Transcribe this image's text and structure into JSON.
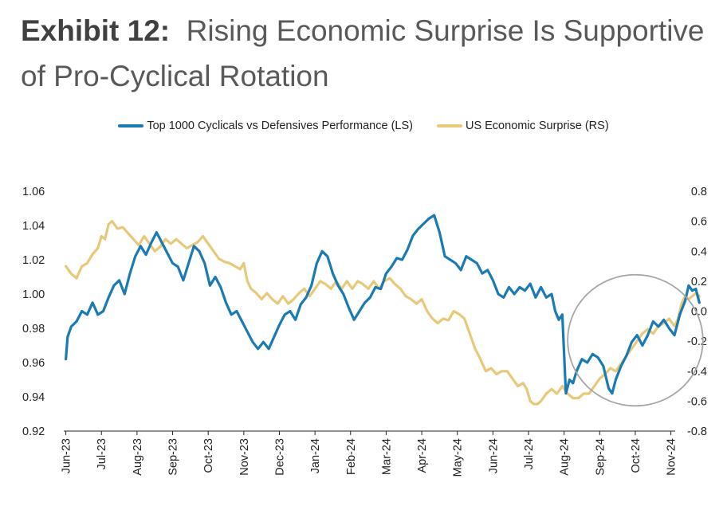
{
  "title": {
    "exhibit": "Exhibit 12:",
    "text": "Rising Economic Surprise Is Supportive of Pro-Cyclical Rotation"
  },
  "chart_data": {
    "type": "line",
    "title": "Rising Economic Surprise Is Supportive of Pro-Cyclical Rotation",
    "x_categories": [
      "Jun-23",
      "Jul-23",
      "Aug-23",
      "Sep-23",
      "Oct-23",
      "Nov-23",
      "Dec-23",
      "Jan-24",
      "Feb-24",
      "Mar-24",
      "Apr-24",
      "May-24",
      "Jun-24",
      "Jul-24",
      "Aug-24",
      "Sep-24",
      "Oct-24",
      "Nov-24"
    ],
    "y_left": {
      "min": 0.92,
      "max": 1.06,
      "ticks": [
        "0.92",
        "0.94",
        "0.96",
        "0.98",
        "1.00",
        "1.02",
        "1.04",
        "1.06"
      ]
    },
    "y_right": {
      "min": -0.8,
      "max": 0.8,
      "ticks": [
        "-0.8",
        "-0.6",
        "-0.4",
        "-0.2",
        "0.0",
        "0.2",
        "0.4",
        "0.6",
        "0.8"
      ]
    },
    "annotation": "circle highlighting Aug-24 to Nov-24",
    "annotation_range": [
      14.1,
      17.9
    ],
    "series": [
      {
        "name": "Top 1000 Cyclicals vs Defensives Performance (LS)",
        "axis": "left",
        "color": "#1a7ab3",
        "points": [
          [
            0,
            0.962
          ],
          [
            0.05,
            0.975
          ],
          [
            0.15,
            0.981
          ],
          [
            0.3,
            0.984
          ],
          [
            0.45,
            0.99
          ],
          [
            0.6,
            0.988
          ],
          [
            0.75,
            0.995
          ],
          [
            0.9,
            0.988
          ],
          [
            1.05,
            0.99
          ],
          [
            1.2,
            0.998
          ],
          [
            1.35,
            1.005
          ],
          [
            1.5,
            1.008
          ],
          [
            1.65,
            1.0
          ],
          [
            1.8,
            1.012
          ],
          [
            1.95,
            1.022
          ],
          [
            2.1,
            1.028
          ],
          [
            2.25,
            1.023
          ],
          [
            2.4,
            1.03
          ],
          [
            2.55,
            1.036
          ],
          [
            2.7,
            1.03
          ],
          [
            2.85,
            1.024
          ],
          [
            3.0,
            1.018
          ],
          [
            3.15,
            1.016
          ],
          [
            3.3,
            1.008
          ],
          [
            3.45,
            1.018
          ],
          [
            3.6,
            1.028
          ],
          [
            3.75,
            1.025
          ],
          [
            3.9,
            1.018
          ],
          [
            4.05,
            1.005
          ],
          [
            4.2,
            1.01
          ],
          [
            4.35,
            1.004
          ],
          [
            4.5,
            0.995
          ],
          [
            4.65,
            0.988
          ],
          [
            4.8,
            0.99
          ],
          [
            4.95,
            0.984
          ],
          [
            5.1,
            0.978
          ],
          [
            5.25,
            0.972
          ],
          [
            5.4,
            0.968
          ],
          [
            5.55,
            0.972
          ],
          [
            5.7,
            0.968
          ],
          [
            5.85,
            0.975
          ],
          [
            6.0,
            0.982
          ],
          [
            6.15,
            0.988
          ],
          [
            6.3,
            0.99
          ],
          [
            6.45,
            0.985
          ],
          [
            6.6,
            0.994
          ],
          [
            6.75,
            0.998
          ],
          [
            6.9,
            1.005
          ],
          [
            7.05,
            1.018
          ],
          [
            7.2,
            1.025
          ],
          [
            7.35,
            1.022
          ],
          [
            7.5,
            1.012
          ],
          [
            7.65,
            1.005
          ],
          [
            7.8,
            1.0
          ],
          [
            7.95,
            0.992
          ],
          [
            8.1,
            0.985
          ],
          [
            8.25,
            0.99
          ],
          [
            8.4,
            0.995
          ],
          [
            8.55,
            0.998
          ],
          [
            8.7,
            1.004
          ],
          [
            8.85,
            1.003
          ],
          [
            9.0,
            1.012
          ],
          [
            9.15,
            1.016
          ],
          [
            9.3,
            1.021
          ],
          [
            9.45,
            1.02
          ],
          [
            9.6,
            1.026
          ],
          [
            9.75,
            1.034
          ],
          [
            9.9,
            1.038
          ],
          [
            10.05,
            1.041
          ],
          [
            10.2,
            1.044
          ],
          [
            10.35,
            1.046
          ],
          [
            10.5,
            1.036
          ],
          [
            10.65,
            1.022
          ],
          [
            10.8,
            1.02
          ],
          [
            10.95,
            1.018
          ],
          [
            11.1,
            1.014
          ],
          [
            11.25,
            1.022
          ],
          [
            11.4,
            1.02
          ],
          [
            11.55,
            1.018
          ],
          [
            11.7,
            1.012
          ],
          [
            11.85,
            1.014
          ],
          [
            12.0,
            1.008
          ],
          [
            12.15,
            1.0
          ],
          [
            12.3,
            0.998
          ],
          [
            12.45,
            1.004
          ],
          [
            12.6,
            1.0
          ],
          [
            12.75,
            1.004
          ],
          [
            12.9,
            1.002
          ],
          [
            13.05,
            1.006
          ],
          [
            13.2,
            0.998
          ],
          [
            13.35,
            1.004
          ],
          [
            13.5,
            0.998
          ],
          [
            13.65,
            1.0
          ],
          [
            13.75,
            0.99
          ],
          [
            13.85,
            0.985
          ],
          [
            13.95,
            0.988
          ],
          [
            14.05,
            0.942
          ],
          [
            14.15,
            0.95
          ],
          [
            14.25,
            0.948
          ],
          [
            14.35,
            0.955
          ],
          [
            14.5,
            0.962
          ],
          [
            14.65,
            0.96
          ],
          [
            14.8,
            0.965
          ],
          [
            14.95,
            0.963
          ],
          [
            15.1,
            0.958
          ],
          [
            15.25,
            0.945
          ],
          [
            15.35,
            0.942
          ],
          [
            15.45,
            0.95
          ],
          [
            15.6,
            0.958
          ],
          [
            15.75,
            0.964
          ],
          [
            15.9,
            0.972
          ],
          [
            16.05,
            0.976
          ],
          [
            16.2,
            0.97
          ],
          [
            16.35,
            0.976
          ],
          [
            16.5,
            0.984
          ],
          [
            16.65,
            0.981
          ],
          [
            16.8,
            0.985
          ],
          [
            16.95,
            0.98
          ],
          [
            17.1,
            0.976
          ],
          [
            17.25,
            0.988
          ],
          [
            17.4,
            0.996
          ],
          [
            17.5,
            1.005
          ],
          [
            17.6,
            1.002
          ],
          [
            17.7,
            1.003
          ],
          [
            17.8,
            0.995
          ]
        ]
      },
      {
        "name": "US Economic Surprise (RS)",
        "axis": "right",
        "color": "#e8c97a",
        "points": [
          [
            0,
            0.3
          ],
          [
            0.15,
            0.25
          ],
          [
            0.3,
            0.22
          ],
          [
            0.45,
            0.3
          ],
          [
            0.6,
            0.32
          ],
          [
            0.75,
            0.38
          ],
          [
            0.9,
            0.42
          ],
          [
            1.0,
            0.5
          ],
          [
            1.1,
            0.48
          ],
          [
            1.2,
            0.58
          ],
          [
            1.3,
            0.6
          ],
          [
            1.45,
            0.55
          ],
          [
            1.6,
            0.56
          ],
          [
            1.75,
            0.52
          ],
          [
            1.9,
            0.48
          ],
          [
            2.05,
            0.44
          ],
          [
            2.2,
            0.5
          ],
          [
            2.35,
            0.45
          ],
          [
            2.5,
            0.4
          ],
          [
            2.65,
            0.43
          ],
          [
            2.8,
            0.48
          ],
          [
            2.95,
            0.45
          ],
          [
            3.1,
            0.48
          ],
          [
            3.25,
            0.45
          ],
          [
            3.4,
            0.42
          ],
          [
            3.55,
            0.44
          ],
          [
            3.7,
            0.46
          ],
          [
            3.85,
            0.5
          ],
          [
            4.0,
            0.45
          ],
          [
            4.15,
            0.4
          ],
          [
            4.3,
            0.35
          ],
          [
            4.45,
            0.33
          ],
          [
            4.6,
            0.32
          ],
          [
            4.75,
            0.3
          ],
          [
            4.9,
            0.28
          ],
          [
            5.0,
            0.32
          ],
          [
            5.1,
            0.2
          ],
          [
            5.2,
            0.15
          ],
          [
            5.35,
            0.12
          ],
          [
            5.5,
            0.08
          ],
          [
            5.65,
            0.12
          ],
          [
            5.8,
            0.08
          ],
          [
            5.95,
            0.05
          ],
          [
            6.1,
            0.1
          ],
          [
            6.25,
            0.05
          ],
          [
            6.4,
            0.08
          ],
          [
            6.55,
            0.12
          ],
          [
            6.7,
            0.15
          ],
          [
            6.85,
            0.1
          ],
          [
            7.0,
            0.15
          ],
          [
            7.15,
            0.2
          ],
          [
            7.3,
            0.18
          ],
          [
            7.45,
            0.15
          ],
          [
            7.6,
            0.2
          ],
          [
            7.75,
            0.15
          ],
          [
            7.9,
            0.2
          ],
          [
            8.05,
            0.15
          ],
          [
            8.2,
            0.2
          ],
          [
            8.35,
            0.18
          ],
          [
            8.5,
            0.15
          ],
          [
            8.65,
            0.2
          ],
          [
            8.8,
            0.15
          ],
          [
            8.95,
            0.2
          ],
          [
            9.1,
            0.22
          ],
          [
            9.25,
            0.18
          ],
          [
            9.4,
            0.15
          ],
          [
            9.55,
            0.1
          ],
          [
            9.7,
            0.08
          ],
          [
            9.85,
            0.05
          ],
          [
            10.0,
            0.08
          ],
          [
            10.15,
            0.0
          ],
          [
            10.3,
            -0.05
          ],
          [
            10.45,
            -0.08
          ],
          [
            10.6,
            -0.05
          ],
          [
            10.75,
            -0.06
          ],
          [
            10.9,
            0.0
          ],
          [
            11.05,
            -0.02
          ],
          [
            11.2,
            -0.05
          ],
          [
            11.35,
            -0.15
          ],
          [
            11.5,
            -0.25
          ],
          [
            11.65,
            -0.32
          ],
          [
            11.8,
            -0.4
          ],
          [
            11.95,
            -0.38
          ],
          [
            12.1,
            -0.42
          ],
          [
            12.25,
            -0.4
          ],
          [
            12.4,
            -0.4
          ],
          [
            12.55,
            -0.45
          ],
          [
            12.7,
            -0.5
          ],
          [
            12.85,
            -0.48
          ],
          [
            12.95,
            -0.52
          ],
          [
            13.05,
            -0.6
          ],
          [
            13.15,
            -0.62
          ],
          [
            13.25,
            -0.62
          ],
          [
            13.35,
            -0.6
          ],
          [
            13.5,
            -0.55
          ],
          [
            13.65,
            -0.52
          ],
          [
            13.8,
            -0.55
          ],
          [
            13.95,
            -0.5
          ],
          [
            14.1,
            -0.55
          ],
          [
            14.25,
            -0.58
          ],
          [
            14.4,
            -0.58
          ],
          [
            14.55,
            -0.55
          ],
          [
            14.7,
            -0.55
          ],
          [
            14.85,
            -0.5
          ],
          [
            15.0,
            -0.45
          ],
          [
            15.15,
            -0.42
          ],
          [
            15.3,
            -0.38
          ],
          [
            15.45,
            -0.4
          ],
          [
            15.6,
            -0.35
          ],
          [
            15.75,
            -0.3
          ],
          [
            15.9,
            -0.25
          ],
          [
            16.05,
            -0.2
          ],
          [
            16.2,
            -0.15
          ],
          [
            16.35,
            -0.12
          ],
          [
            16.5,
            -0.15
          ],
          [
            16.65,
            -0.1
          ],
          [
            16.8,
            -0.08
          ],
          [
            16.95,
            -0.05
          ],
          [
            17.1,
            -0.1
          ],
          [
            17.2,
            -0.05
          ],
          [
            17.3,
            0.05
          ],
          [
            17.4,
            0.1
          ],
          [
            17.5,
            0.08
          ],
          [
            17.6,
            0.1
          ],
          [
            17.7,
            0.12
          ],
          [
            17.8,
            0.1
          ]
        ]
      }
    ]
  }
}
